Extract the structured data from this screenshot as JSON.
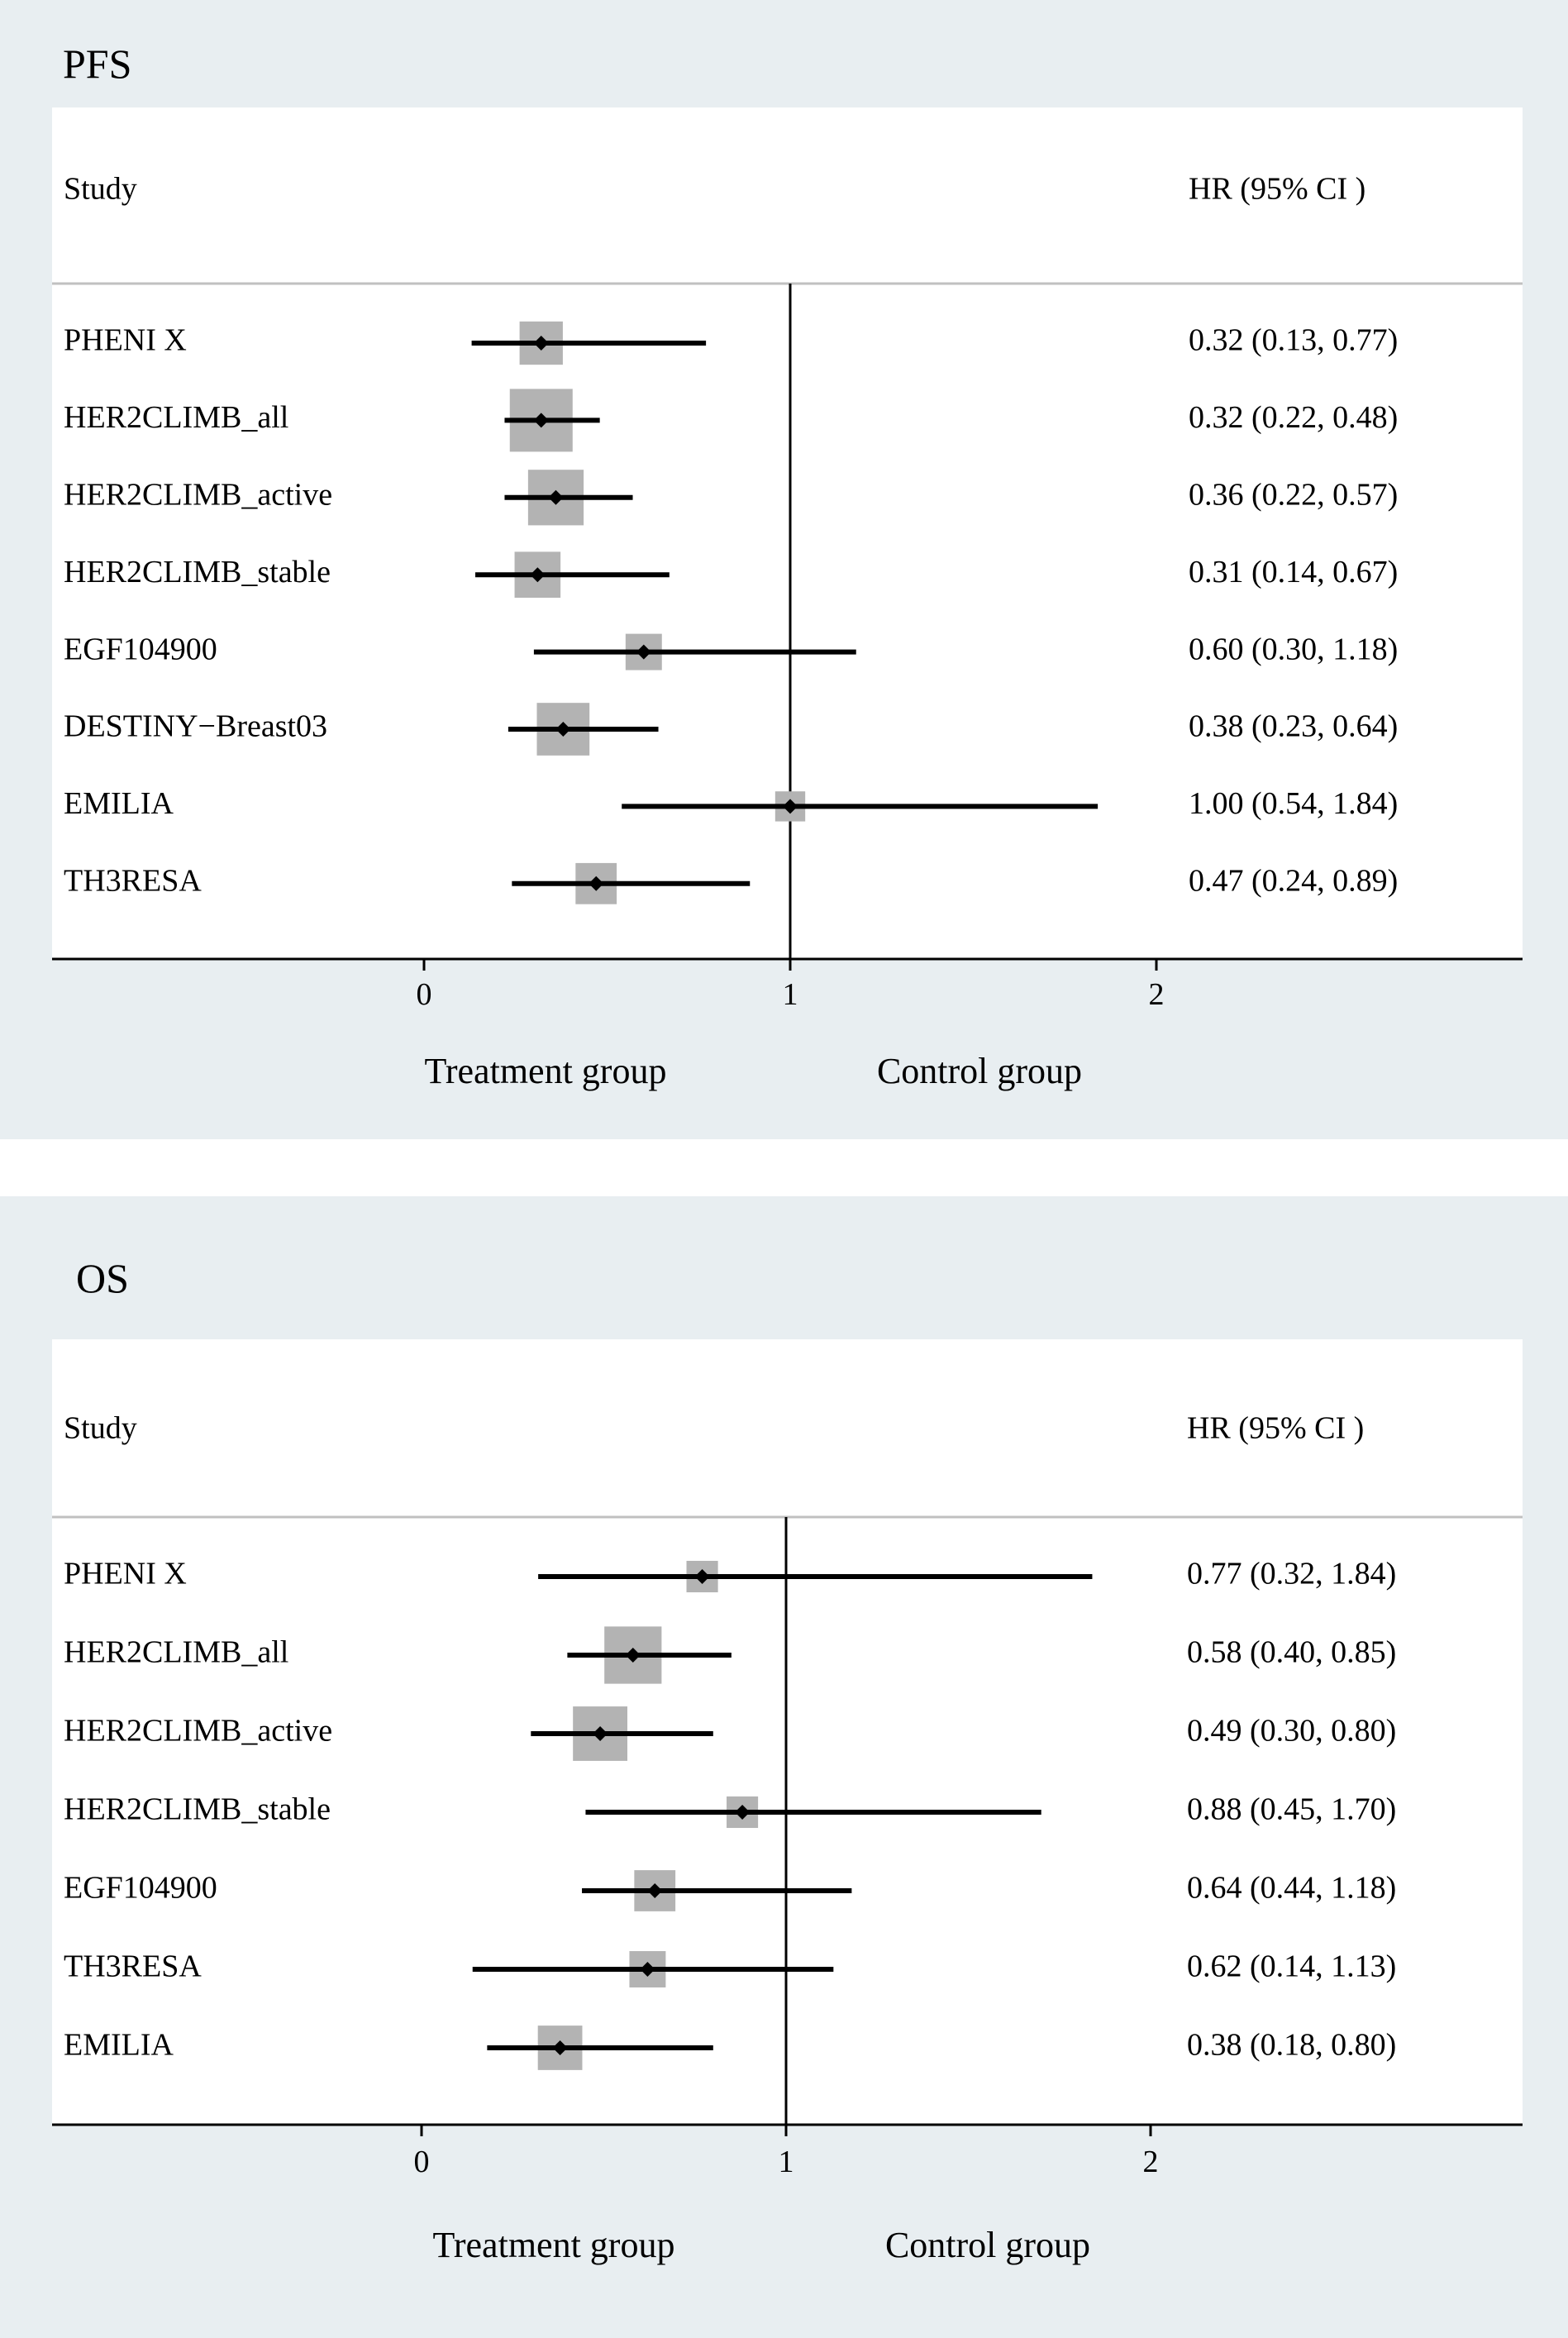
{
  "chart_data": [
    {
      "type": "forest",
      "title": "PFS",
      "header_study": "Study",
      "header_hr": "HR (95% CI )",
      "xlim": [
        -1.0,
        3.0
      ],
      "xticks": [
        "0",
        "1",
        "2"
      ],
      "reference_line": 1,
      "footer_left": "Treatment group",
      "footer_right": "Control group",
      "studies": [
        {
          "name": "PHENI X",
          "hr": 0.32,
          "lower": 0.13,
          "upper": 0.77,
          "label": "0.32 (0.13, 0.77)",
          "weight": 0.35
        },
        {
          "name": "HER2CLIMB_all",
          "hr": 0.32,
          "lower": 0.22,
          "upper": 0.48,
          "label": "0.32 (0.22, 0.48)",
          "weight": 1.0
        },
        {
          "name": "HER2CLIMB_active",
          "hr": 0.36,
          "lower": 0.22,
          "upper": 0.57,
          "label": "0.36 (0.22, 0.57)",
          "weight": 0.72
        },
        {
          "name": "HER2CLIMB_stable",
          "hr": 0.31,
          "lower": 0.14,
          "upper": 0.67,
          "label": "0.31 (0.14, 0.67)",
          "weight": 0.42
        },
        {
          "name": "EGF104900",
          "hr": 0.6,
          "lower": 0.3,
          "upper": 1.18,
          "label": "0.60 (0.30, 1.18)",
          "weight": 0.2
        },
        {
          "name": "DESTINY−Breast03",
          "hr": 0.38,
          "lower": 0.23,
          "upper": 0.64,
          "label": "0.38 (0.23, 0.64)",
          "weight": 0.62
        },
        {
          "name": "EMILIA",
          "hr": 1.0,
          "lower": 0.54,
          "upper": 1.84,
          "label": "1.00 (0.54, 1.84)",
          "weight": 0.1
        },
        {
          "name": "TH3RESA",
          "hr": 0.47,
          "lower": 0.24,
          "upper": 0.89,
          "label": "0.47 (0.24, 0.89)",
          "weight": 0.3
        }
      ]
    },
    {
      "type": "forest",
      "title": "OS",
      "header_study": "Study",
      "header_hr": "HR (95% CI )",
      "xlim": [
        -1.0,
        3.0
      ],
      "xticks": [
        "0",
        "1",
        "2"
      ],
      "reference_line": 1,
      "footer_left": "Treatment group",
      "footer_right": "Control group",
      "studies": [
        {
          "name": "PHENI X",
          "hr": 0.77,
          "lower": 0.32,
          "upper": 1.84,
          "label": "0.77 (0.32, 1.84)",
          "weight": 0.12
        },
        {
          "name": "HER2CLIMB_all",
          "hr": 0.58,
          "lower": 0.4,
          "upper": 0.85,
          "label": "0.58 (0.40, 0.85)",
          "weight": 0.78
        },
        {
          "name": "HER2CLIMB_active",
          "hr": 0.49,
          "lower": 0.3,
          "upper": 0.8,
          "label": "0.49 (0.30, 0.80)",
          "weight": 0.68
        },
        {
          "name": "HER2CLIMB_stable",
          "hr": 0.88,
          "lower": 0.45,
          "upper": 1.7,
          "label": "0.88 (0.45, 1.70)",
          "weight": 0.12
        },
        {
          "name": "EGF104900",
          "hr": 0.64,
          "lower": 0.44,
          "upper": 1.18,
          "label": "0.64 (0.44, 1.18)",
          "weight": 0.3
        },
        {
          "name": "TH3RESA",
          "hr": 0.62,
          "lower": 0.14,
          "upper": 1.13,
          "label": "0.62 (0.14, 1.13)",
          "weight": 0.2
        },
        {
          "name": "EMILIA",
          "hr": 0.38,
          "lower": 0.18,
          "upper": 0.8,
          "label": "0.38 (0.18, 0.80)",
          "weight": 0.38
        }
      ]
    }
  ],
  "colors": {
    "panel_bg": "#e8eef1",
    "plot_bg": "#ffffff",
    "box": "#b3b3b3",
    "line": "#000000",
    "header_rule": "#c0c0c0"
  }
}
